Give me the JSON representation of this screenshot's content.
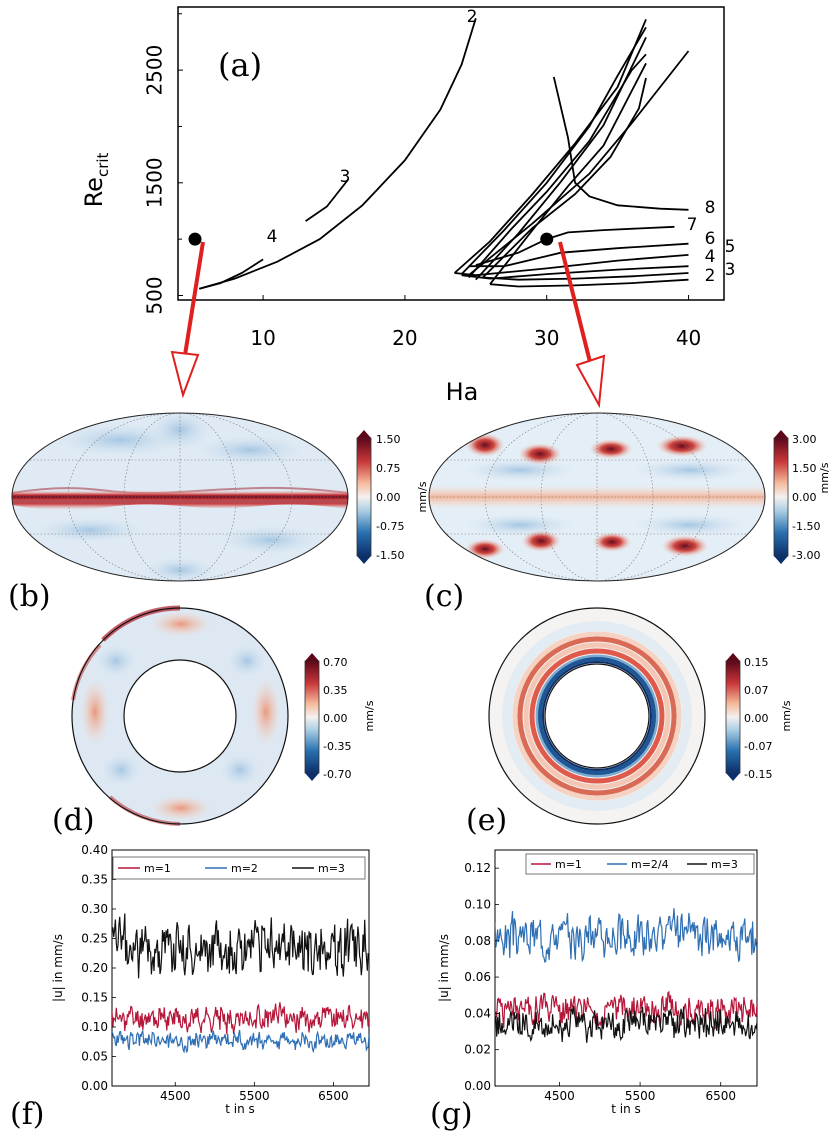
{
  "panel_labels": {
    "a": "(a)",
    "b": "(b)",
    "c": "(c)",
    "d": "(d)",
    "e": "(e)",
    "f": "(f)",
    "g": "(g)"
  },
  "chart_data": [
    {
      "id": "a",
      "type": "line",
      "xlabel": "Ha",
      "ylabel": "Re",
      "ylabel_sub": "crit",
      "xlim": [
        4,
        42.5
      ],
      "ylim": [
        460,
        3060
      ],
      "xticks": [
        10,
        20,
        30,
        40
      ],
      "yticks": [
        500,
        1500,
        2500
      ],
      "grid": false,
      "curve_labels": [
        "2",
        "3",
        "4",
        "8",
        "7",
        "6",
        "5",
        "4",
        "3",
        "2"
      ],
      "series": [
        {
          "label": "4",
          "points": [
            [
              5.5,
              560
            ],
            [
              7,
              610
            ],
            [
              8.5,
              700
            ],
            [
              10,
              820
            ]
          ]
        },
        {
          "label": "3",
          "points": [
            [
              13,
              1160
            ],
            [
              14.5,
              1290
            ],
            [
              16,
              1530
            ]
          ]
        },
        {
          "label": "2",
          "points": [
            [
              5.5,
              560
            ],
            [
              8,
              650
            ],
            [
              11,
              800
            ],
            [
              14,
              1000
            ],
            [
              17,
              1300
            ],
            [
              20,
              1700
            ],
            [
              22.5,
              2150
            ],
            [
              24,
              2550
            ],
            [
              25,
              2960
            ]
          ]
        },
        {
          "label": "2",
          "points": [
            [
              26,
              600
            ],
            [
              28,
              580
            ],
            [
              32,
              590
            ],
            [
              36,
              610
            ],
            [
              40,
              640
            ]
          ]
        },
        {
          "label": "3",
          "points": [
            [
              25.5,
              660
            ],
            [
              28,
              640
            ],
            [
              32,
              650
            ],
            [
              36,
              670
            ],
            [
              40,
              700
            ]
          ]
        },
        {
          "label": "4",
          "points": [
            [
              24,
              680
            ],
            [
              26,
              650
            ],
            [
              30,
              690
            ],
            [
              35,
              730
            ],
            [
              40,
              760
            ]
          ]
        },
        {
          "label": "5",
          "points": [
            [
              23.5,
              700
            ],
            [
              25,
              680
            ],
            [
              30,
              740
            ],
            [
              35,
              810
            ],
            [
              40,
              860
            ]
          ]
        },
        {
          "label": "6",
          "points": [
            [
              24.5,
              760
            ],
            [
              27,
              760
            ],
            [
              31,
              880
            ],
            [
              35,
              920
            ],
            [
              40,
              960
            ]
          ]
        },
        {
          "label": "7",
          "points": [
            [
              25,
              770
            ],
            [
              28,
              880
            ],
            [
              30,
              1000
            ],
            [
              31.5,
              1060
            ],
            [
              34,
              1080
            ],
            [
              39,
              1110
            ]
          ]
        },
        {
          "label": "8",
          "points": [
            [
              30.5,
              2440
            ],
            [
              31.5,
              1900
            ],
            [
              32,
              1500
            ],
            [
              33,
              1380
            ],
            [
              35,
              1300
            ],
            [
              38,
              1270
            ],
            [
              40,
              1260
            ]
          ]
        },
        {
          "label": "",
          "points": [
            [
              23.5,
              700
            ],
            [
              26,
              980
            ],
            [
              29,
              1400
            ],
            [
              32,
              1850
            ],
            [
              35,
              2350
            ],
            [
              37,
              2950
            ]
          ]
        },
        {
          "label": "",
          "points": [
            [
              24,
              690
            ],
            [
              27,
              1080
            ],
            [
              30,
              1500
            ],
            [
              33,
              2000
            ],
            [
              35,
              2450
            ],
            [
              37,
              2880
            ]
          ]
        },
        {
          "label": "",
          "points": [
            [
              24.5,
              660
            ],
            [
              27.5,
              1090
            ],
            [
              30,
              1420
            ],
            [
              33,
              1870
            ],
            [
              36,
              2500
            ],
            [
              37,
              2640
            ]
          ]
        },
        {
          "label": "",
          "points": [
            [
              25,
              640
            ],
            [
              28,
              1050
            ],
            [
              31,
              1510
            ],
            [
              34,
              2010
            ],
            [
              37,
              2790
            ]
          ]
        },
        {
          "label": "",
          "points": [
            [
              26,
              600
            ],
            [
              29,
              1080
            ],
            [
              31.5,
              1470
            ],
            [
              34,
              1830
            ],
            [
              37,
              2560
            ]
          ]
        },
        {
          "label": "",
          "points": [
            [
              24.5,
              680
            ],
            [
              29,
              1140
            ],
            [
              33,
              1580
            ],
            [
              36,
              2030
            ],
            [
              40,
              2670
            ]
          ]
        },
        {
          "label": "",
          "points": [
            [
              25.5,
              660
            ],
            [
              29,
              1100
            ],
            [
              32,
              1400
            ],
            [
              34.5,
              1730
            ],
            [
              36.5,
              2160
            ],
            [
              37,
              2430
            ]
          ]
        }
      ],
      "markers": [
        [
          5.2,
          1000
        ],
        [
          30,
          1000
        ]
      ]
    },
    {
      "id": "b",
      "type": "heatmap",
      "colorbar_ticks": [
        "1.50",
        "0.75",
        "0.00",
        "-0.75",
        "-1.50"
      ],
      "colorbar_unit": "mm/s",
      "range": [
        -1.5,
        1.5
      ]
    },
    {
      "id": "c",
      "type": "heatmap",
      "colorbar_ticks": [
        "3.00",
        "1.50",
        "0.00",
        "-1.50",
        "-3.00"
      ],
      "colorbar_unit": "mm/s",
      "range": [
        -3.0,
        3.0
      ]
    },
    {
      "id": "d",
      "type": "heatmap",
      "colorbar_ticks": [
        "0.70",
        "0.35",
        "0.00",
        "-0.35",
        "-0.70"
      ],
      "colorbar_unit": "mm/s",
      "range": [
        -0.7,
        0.7
      ]
    },
    {
      "id": "e",
      "type": "heatmap",
      "colorbar_ticks": [
        "0.15",
        "0.07",
        "0.00",
        "-0.07",
        "-0.15"
      ],
      "colorbar_unit": "mm/s",
      "range": [
        -0.15,
        0.15
      ]
    },
    {
      "id": "f",
      "type": "line",
      "xlabel": "t in s",
      "ylabel": "|u| in mm/s",
      "xlim": [
        3700,
        6950
      ],
      "ylim": [
        0,
        0.4
      ],
      "xticks": [
        4500,
        5500,
        6500
      ],
      "yticks": [
        0.0,
        0.05,
        0.1,
        0.15,
        0.2,
        0.25,
        0.3,
        0.35,
        0.4
      ],
      "ytick_labels": [
        "0.00",
        "0.05",
        "0.10",
        "0.15",
        "0.20",
        "0.25",
        "0.30",
        "0.35",
        "0.40"
      ],
      "legend": "top",
      "series": [
        {
          "name": "m=1",
          "color": "#b5173a",
          "mean": 0.115,
          "amp": 0.025,
          "seed": 11
        },
        {
          "name": "m=2",
          "color": "#2f6fb3",
          "mean": 0.078,
          "amp": 0.018,
          "seed": 23
        },
        {
          "name": "m=3",
          "color": "#111111",
          "mean": 0.235,
          "amp": 0.055,
          "seed": 37
        }
      ]
    },
    {
      "id": "g",
      "type": "line",
      "xlabel": "t in s",
      "ylabel": "|u| in mm/s",
      "xlim": [
        3700,
        6950
      ],
      "ylim": [
        0,
        0.13
      ],
      "xticks": [
        4500,
        5500,
        6500
      ],
      "yticks": [
        0.0,
        0.02,
        0.04,
        0.06,
        0.08,
        0.1,
        0.12
      ],
      "ytick_labels": [
        "0.00",
        "0.02",
        "0.04",
        "0.06",
        "0.08",
        "0.10",
        "0.12"
      ],
      "legend": "top",
      "series": [
        {
          "name": "m=1",
          "color": "#b5173a",
          "mean": 0.042,
          "amp": 0.01,
          "seed": 51
        },
        {
          "name": "m=2/4",
          "color": "#2f6fb3",
          "mean": 0.083,
          "amp": 0.013,
          "seed": 67
        },
        {
          "name": "m=3",
          "color": "#111111",
          "mean": 0.034,
          "amp": 0.01,
          "seed": 79
        }
      ]
    }
  ]
}
